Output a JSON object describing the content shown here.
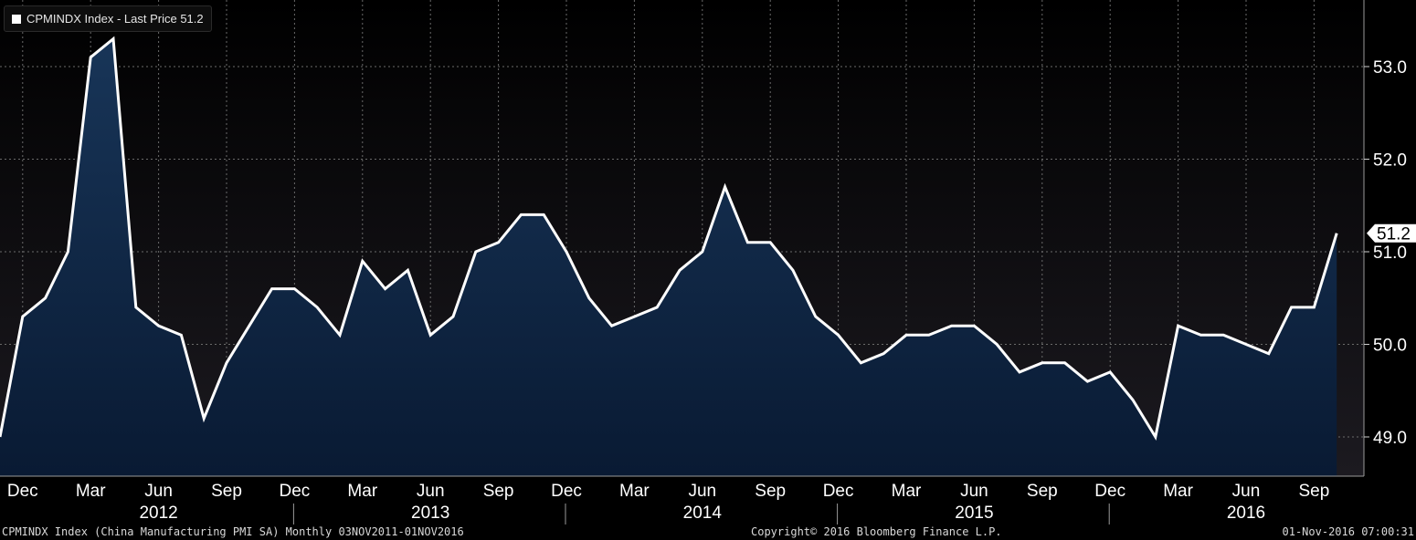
{
  "legend": {
    "label": "CPMINDX Index - Last Price 51.2",
    "color": "#ffffff"
  },
  "footer": {
    "left": "CPMINDX Index (China Manufacturing PMI SA)  Monthly 03NOV2011-01NOV2016",
    "center": "Copyright© 2016 Bloomberg Finance L.P.",
    "right": "01-Nov-2016 07:00:31"
  },
  "colors": {
    "background_top": "#000000",
    "plot_background_top": "#151318",
    "area_fill_top": "#183558",
    "area_fill_bottom": "#091a33",
    "line": "#ffffff",
    "grid": "#6a6a6a",
    "text": "#ffffff"
  },
  "chart_data": {
    "type": "area",
    "title": "",
    "series": [
      {
        "name": "CPMINDX Index - Last Price",
        "x": [
          "2011-11",
          "2011-12",
          "2012-01",
          "2012-02",
          "2012-03",
          "2012-04",
          "2012-05",
          "2012-06",
          "2012-07",
          "2012-08",
          "2012-09",
          "2012-10",
          "2012-11",
          "2012-12",
          "2013-01",
          "2013-02",
          "2013-03",
          "2013-04",
          "2013-05",
          "2013-06",
          "2013-07",
          "2013-08",
          "2013-09",
          "2013-10",
          "2013-11",
          "2013-12",
          "2014-01",
          "2014-02",
          "2014-03",
          "2014-04",
          "2014-05",
          "2014-06",
          "2014-07",
          "2014-08",
          "2014-09",
          "2014-10",
          "2014-11",
          "2014-12",
          "2015-01",
          "2015-02",
          "2015-03",
          "2015-04",
          "2015-05",
          "2015-06",
          "2015-07",
          "2015-08",
          "2015-09",
          "2015-10",
          "2015-11",
          "2015-12",
          "2016-01",
          "2016-02",
          "2016-03",
          "2016-04",
          "2016-05",
          "2016-06",
          "2016-07",
          "2016-08",
          "2016-09",
          "2016-10"
        ],
        "values": [
          49.0,
          50.3,
          50.5,
          51.0,
          53.1,
          53.3,
          50.4,
          50.2,
          50.1,
          49.2,
          49.8,
          50.2,
          50.6,
          50.6,
          50.4,
          50.1,
          50.9,
          50.6,
          50.8,
          50.1,
          50.3,
          51.0,
          51.1,
          51.4,
          51.4,
          51.0,
          50.5,
          50.2,
          50.3,
          50.4,
          50.8,
          51.0,
          51.7,
          51.1,
          51.1,
          50.8,
          50.3,
          50.1,
          49.8,
          49.9,
          50.1,
          50.1,
          50.2,
          50.2,
          50.0,
          49.7,
          49.8,
          49.8,
          49.6,
          49.7,
          49.4,
          49.0,
          50.2,
          50.1,
          50.1,
          50.0,
          49.9,
          50.4,
          50.4,
          51.2
        ]
      }
    ],
    "ylim": [
      48.6,
      53.7
    ],
    "y_ticks": [
      "49.0",
      "50.0",
      "51.0",
      "52.0",
      "53.0"
    ],
    "y_axis_side": "right",
    "last_value_label": "51.2",
    "x_month_labels": [
      {
        "date": "2011-12",
        "label": "Dec"
      },
      {
        "date": "2012-03",
        "label": "Mar"
      },
      {
        "date": "2012-06",
        "label": "Jun"
      },
      {
        "date": "2012-09",
        "label": "Sep"
      },
      {
        "date": "2012-12",
        "label": "Dec"
      },
      {
        "date": "2013-03",
        "label": "Mar"
      },
      {
        "date": "2013-06",
        "label": "Jun"
      },
      {
        "date": "2013-09",
        "label": "Sep"
      },
      {
        "date": "2013-12",
        "label": "Dec"
      },
      {
        "date": "2014-03",
        "label": "Mar"
      },
      {
        "date": "2014-06",
        "label": "Jun"
      },
      {
        "date": "2014-09",
        "label": "Sep"
      },
      {
        "date": "2014-12",
        "label": "Dec"
      },
      {
        "date": "2015-03",
        "label": "Mar"
      },
      {
        "date": "2015-06",
        "label": "Jun"
      },
      {
        "date": "2015-09",
        "label": "Sep"
      },
      {
        "date": "2015-12",
        "label": "Dec"
      },
      {
        "date": "2016-03",
        "label": "Mar"
      },
      {
        "date": "2016-06",
        "label": "Jun"
      },
      {
        "date": "2016-09",
        "label": "Sep"
      }
    ],
    "x_year_labels": [
      {
        "date": "2012-06",
        "label": "2012"
      },
      {
        "date": "2013-06",
        "label": "2013"
      },
      {
        "date": "2014-06",
        "label": "2014"
      },
      {
        "date": "2015-06",
        "label": "2015"
      },
      {
        "date": "2016-06",
        "label": "2016"
      }
    ],
    "year_separators": [
      "2012-12",
      "2013-12",
      "2014-12",
      "2015-12"
    ],
    "grid": true,
    "legend_position": "top-left"
  }
}
